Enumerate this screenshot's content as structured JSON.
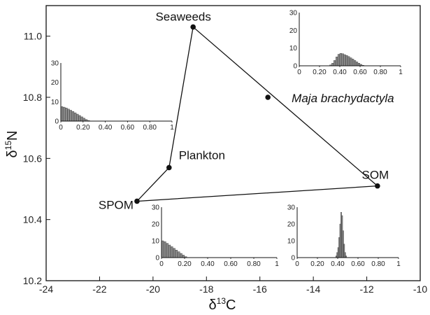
{
  "chart_data": {
    "type": "scatter",
    "xlabel_base": "δ",
    "xlabel_sup": "13",
    "xlabel_tail": "C",
    "ylabel_base": "δ",
    "ylabel_sup": "15",
    "ylabel_tail": "N",
    "xlim": [
      -24,
      -10
    ],
    "ylim": [
      10.2,
      11.1
    ],
    "xticks": [
      -24,
      -22,
      -20,
      -18,
      -16,
      -14,
      -12,
      -10
    ],
    "yticks": [
      10.2,
      10.4,
      10.6,
      10.8,
      11.0
    ],
    "xtick_labels": [
      "-24",
      "-22",
      "-20",
      "-18",
      "-16",
      "-14",
      "-12",
      "-10"
    ],
    "ytick_labels": [
      "10.2",
      "10.4",
      "10.6",
      "10.8",
      "11.0"
    ],
    "grid": false,
    "points": [
      {
        "label": "Seaweeds",
        "x": -18.5,
        "y": 11.03,
        "italic": false
      },
      {
        "label": "Plankton",
        "x": -19.4,
        "y": 10.57,
        "italic": false
      },
      {
        "label": "SPOM",
        "x": -20.6,
        "y": 10.46,
        "italic": false
      },
      {
        "label": "SOM",
        "x": -11.6,
        "y": 10.51,
        "italic": false
      },
      {
        "label": "Maja brachydactyla",
        "x": -15.7,
        "y": 10.8,
        "italic": true
      }
    ],
    "polygon_order": [
      "Seaweeds",
      "SOM",
      "SPOM",
      "Plankton",
      "Seaweeds"
    ],
    "insets": [
      {
        "source": "Seaweeds",
        "type": "bar",
        "xlim": [
          0,
          1
        ],
        "ylim": [
          0,
          30
        ],
        "xtick_labels": [
          "0",
          "0.20",
          "0.40",
          "0.60",
          "0.80",
          "1"
        ],
        "ytick_labels": [
          "0",
          "10",
          "20",
          "30"
        ],
        "bins": [
          0.3,
          0.32,
          0.34,
          0.36,
          0.38,
          0.4,
          0.42,
          0.44,
          0.46,
          0.48,
          0.5,
          0.52,
          0.54,
          0.56,
          0.58,
          0.6,
          0.62
        ],
        "values": [
          0.5,
          1.5,
          3,
          5,
          6.5,
          7,
          6.8,
          6.3,
          5.8,
          5.2,
          4.5,
          3.8,
          3,
          2.2,
          1.5,
          0.8,
          0.3
        ]
      },
      {
        "source": "SPOM",
        "type": "bar",
        "xlim": [
          0,
          1
        ],
        "ylim": [
          0,
          30
        ],
        "xtick_labels": [
          "0",
          "0.20",
          "0.40",
          "0.60",
          "0.80",
          "1"
        ],
        "ytick_labels": [
          "0",
          "10",
          "20",
          "30"
        ],
        "bins": [
          0.0,
          0.02,
          0.04,
          0.06,
          0.08,
          0.1,
          0.12,
          0.14,
          0.16,
          0.18,
          0.2,
          0.22,
          0.24
        ],
        "values": [
          7.5,
          7.2,
          6.8,
          6.2,
          5.6,
          5,
          4.3,
          3.6,
          2.9,
          2.2,
          1.5,
          0.8,
          0.3
        ]
      },
      {
        "source": "Plankton",
        "type": "bar",
        "xlim": [
          0,
          1
        ],
        "ylim": [
          0,
          30
        ],
        "xtick_labels": [
          "0",
          "0.20",
          "0.40",
          "0.60",
          "0.80",
          "1"
        ],
        "ytick_labels": [
          "0",
          "10",
          "20",
          "30"
        ],
        "bins": [
          0.0,
          0.02,
          0.04,
          0.06,
          0.08,
          0.1,
          0.12,
          0.14,
          0.16,
          0.18,
          0.2
        ],
        "values": [
          10,
          9.5,
          8.5,
          7.5,
          6.5,
          5.5,
          4.5,
          3.5,
          2.5,
          1.5,
          0.6
        ]
      },
      {
        "source": "SOM",
        "type": "bar",
        "xlim": [
          0,
          1
        ],
        "ylim": [
          0,
          30
        ],
        "xtick_labels": [
          "0",
          "0.20",
          "0.40",
          "0.60",
          "0.80",
          "1"
        ],
        "ytick_labels": [
          "0",
          "10",
          "20",
          "30"
        ],
        "bins": [
          0.38,
          0.39,
          0.4,
          0.41,
          0.42,
          0.43,
          0.44,
          0.45,
          0.46,
          0.47,
          0.48
        ],
        "values": [
          1,
          3,
          6,
          12,
          20,
          27,
          25,
          16,
          8,
          3,
          1
        ]
      }
    ]
  }
}
